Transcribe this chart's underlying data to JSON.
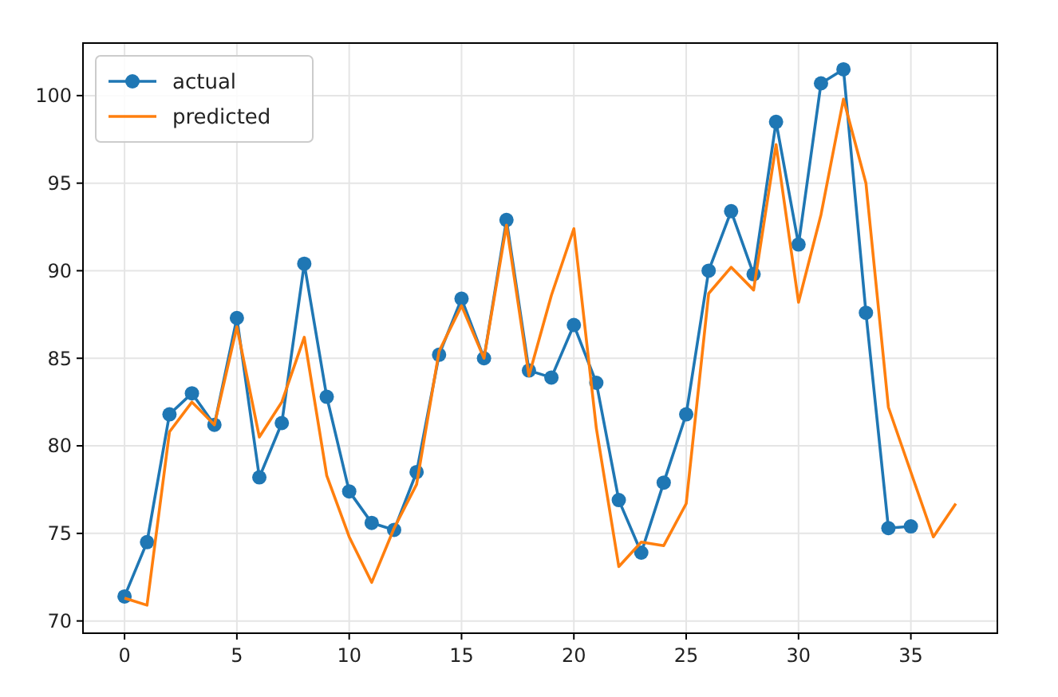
{
  "chart_data": {
    "type": "line",
    "x": [
      0,
      1,
      2,
      3,
      4,
      5,
      6,
      7,
      8,
      9,
      10,
      11,
      12,
      13,
      14,
      15,
      16,
      17,
      18,
      19,
      20,
      21,
      22,
      23,
      24,
      25,
      26,
      27,
      28,
      29,
      30,
      31,
      32,
      33,
      34,
      35,
      36,
      37
    ],
    "series": [
      {
        "name": "actual",
        "color": "#1f77b4",
        "marker": "circle",
        "values": [
          71.4,
          74.5,
          81.8,
          83.0,
          81.2,
          87.3,
          78.2,
          81.3,
          90.4,
          82.8,
          77.4,
          75.6,
          75.2,
          78.5,
          85.2,
          88.4,
          85.0,
          92.9,
          84.3,
          83.9,
          86.9,
          83.6,
          76.9,
          73.9,
          77.9,
          81.8,
          90.0,
          93.4,
          89.8,
          98.5,
          91.5,
          100.7,
          101.5,
          87.6,
          75.3,
          75.4,
          null,
          null
        ]
      },
      {
        "name": "predicted",
        "color": "#ff7f0e",
        "marker": "none",
        "values": [
          71.3,
          70.9,
          80.8,
          82.5,
          81.2,
          86.8,
          80.5,
          82.5,
          86.2,
          78.3,
          74.8,
          72.2,
          75.3,
          77.8,
          85.4,
          88.0,
          85.0,
          92.6,
          84.0,
          88.6,
          92.4,
          81.0,
          73.1,
          74.5,
          74.3,
          76.7,
          88.7,
          90.2,
          88.9,
          97.2,
          88.2,
          93.2,
          99.8,
          95.0,
          82.2,
          78.5,
          74.8,
          76.7
        ]
      }
    ],
    "xlim": [
      -1.85,
      38.85
    ],
    "xticks": [
      0,
      5,
      10,
      15,
      20,
      25,
      30,
      35
    ],
    "ylim": [
      69.3,
      103.0
    ],
    "yticks": [
      70,
      75,
      80,
      85,
      90,
      95,
      100
    ],
    "grid": true,
    "legend": "top left",
    "line_style": "solid"
  }
}
